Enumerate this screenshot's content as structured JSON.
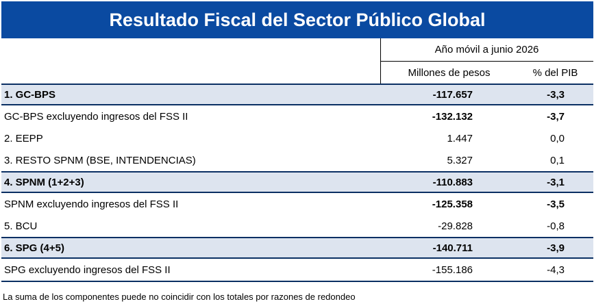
{
  "title": "Resultado Fiscal del Sector Público Global",
  "period_header": "Año móvil a junio 2026",
  "columns": [
    "Millones de pesos",
    "% del PIB"
  ],
  "rows": [
    {
      "label": "1. GC-BPS",
      "millones": "-117.657",
      "pib": "-3,3",
      "shaded": true,
      "bold_label": true,
      "bold_values": true
    },
    {
      "label": "GC-BPS excluyendo ingresos del FSS II",
      "millones": "-132.132",
      "pib": "-3,7",
      "shaded": false,
      "bold_label": false,
      "bold_values": true
    },
    {
      "label": "2. EEPP",
      "millones": "1.447",
      "pib": "0,0",
      "shaded": false,
      "bold_label": false,
      "bold_values": false
    },
    {
      "label": "3. RESTO SPNM (BSE, INTENDENCIAS)",
      "millones": "5.327",
      "pib": "0,1",
      "shaded": false,
      "bold_label": false,
      "bold_values": false
    },
    {
      "label": "4. SPNM (1+2+3)",
      "millones": "-110.883",
      "pib": "-3,1",
      "shaded": true,
      "bold_label": true,
      "bold_values": true
    },
    {
      "label": "SPNM excluyendo ingresos del FSS II",
      "millones": "-125.358",
      "pib": "-3,5",
      "shaded": false,
      "bold_label": false,
      "bold_values": true
    },
    {
      "label": "5. BCU",
      "millones": "-29.828",
      "pib": "-0,8",
      "shaded": false,
      "bold_label": false,
      "bold_values": false
    },
    {
      "label": "6. SPG (4+5)",
      "millones": "-140.711",
      "pib": "-3,9",
      "shaded": true,
      "bold_label": true,
      "bold_values": true
    },
    {
      "label": "SPG excluyendo ingresos del FSS II",
      "millones": "-155.186",
      "pib": "-4,3",
      "shaded": false,
      "bold_label": false,
      "bold_values": false
    }
  ],
  "note": "La suma de los componentes puede no coincidir con los totales por razones de redondeo",
  "colors": {
    "banner": "#0a4aa1",
    "shade": "#dde4ef",
    "rule": "#0a2f63"
  }
}
